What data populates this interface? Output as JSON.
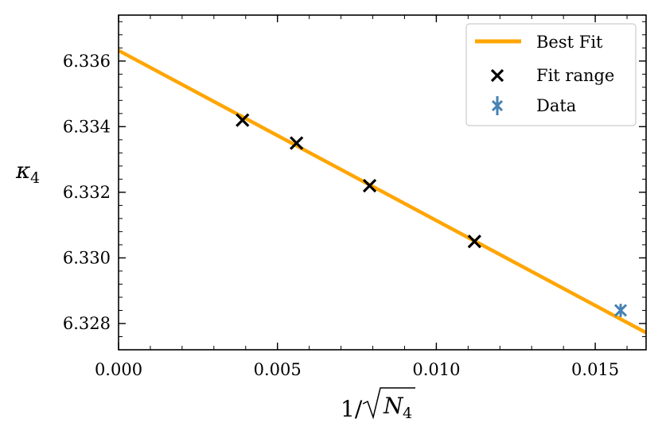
{
  "chart_data": {
    "type": "scatter",
    "xlabel_parts": {
      "prefix": "1/",
      "var": "N",
      "sub": "4"
    },
    "ylabel_parts": {
      "var": "κ",
      "sub": "4"
    },
    "xlim": [
      0.0,
      0.0166
    ],
    "ylim": [
      6.3272,
      6.3374
    ],
    "xticks": [
      {
        "value": 0.0,
        "label": "0.000"
      },
      {
        "value": 0.005,
        "label": "0.005"
      },
      {
        "value": 0.01,
        "label": "0.010"
      },
      {
        "value": 0.015,
        "label": "0.015"
      }
    ],
    "yticks": [
      {
        "value": 6.328,
        "label": "6.328"
      },
      {
        "value": 6.33,
        "label": "6.330"
      },
      {
        "value": 6.332,
        "label": "6.332"
      },
      {
        "value": 6.334,
        "label": "6.334"
      },
      {
        "value": 6.336,
        "label": "6.336"
      }
    ],
    "best_fit": {
      "x": [
        0.0,
        0.0166
      ],
      "y": [
        6.33632,
        6.32772
      ]
    },
    "fit_range": {
      "x": [
        0.0039,
        0.0056,
        0.0079,
        0.0112
      ],
      "y": [
        6.3342,
        6.3335,
        6.3322,
        6.3305
      ]
    },
    "data": {
      "x": [
        0.0158
      ],
      "y": [
        6.3284
      ],
      "yerr": [
        0.0002
      ]
    },
    "legend": {
      "position": "top-right",
      "entries": [
        "Best Fit",
        "Fit range",
        "Data"
      ]
    },
    "colors": {
      "best_fit": "#FFA500",
      "fit_range": "#000000",
      "data": "#4682B4"
    }
  }
}
